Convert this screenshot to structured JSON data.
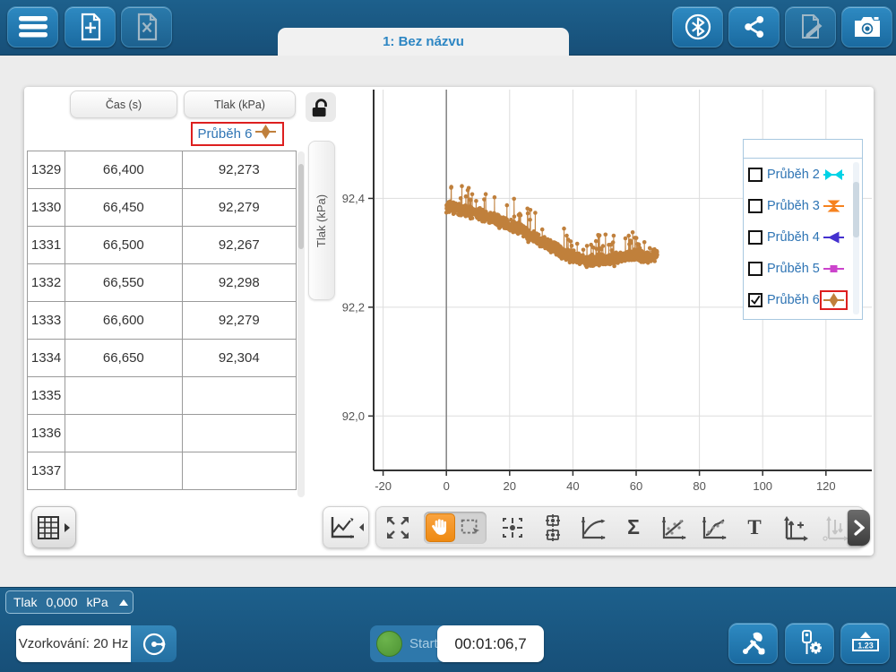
{
  "topbar": {
    "tab_label": "1: Bez názvu"
  },
  "table": {
    "col1": "Čas (s)",
    "col2": "Tlak (kPa)",
    "run_label": "Průběh 6",
    "run_color": "#c0803c",
    "rows": [
      [
        "1329",
        "66,400",
        "92,273"
      ],
      [
        "1330",
        "66,450",
        "92,279"
      ],
      [
        "1331",
        "66,500",
        "92,267"
      ],
      [
        "1332",
        "66,550",
        "92,298"
      ],
      [
        "1333",
        "66,600",
        "92,279"
      ],
      [
        "1334",
        "66,650",
        "92,304"
      ],
      [
        "1335",
        "",
        ""
      ],
      [
        "1336",
        "",
        ""
      ],
      [
        "1337",
        "",
        ""
      ]
    ]
  },
  "graph": {
    "y_axis_button": "Tlak (kPa)",
    "legend_items": [
      {
        "label": "Průběh 2",
        "checked": false,
        "marker": "bowtie-horizontal",
        "color": "#00d3e6",
        "highlight": false
      },
      {
        "label": "Průběh 3",
        "checked": false,
        "marker": "bowtie-vertical",
        "color": "#f6821f",
        "highlight": false
      },
      {
        "label": "Průběh 4",
        "checked": false,
        "marker": "triangle-left",
        "color": "#4431cf",
        "highlight": false
      },
      {
        "label": "Průběh 5",
        "checked": false,
        "marker": "square",
        "color": "#cc44cc",
        "highlight": false
      },
      {
        "label": "Průběh 6",
        "checked": true,
        "marker": "diamond",
        "color": "#c0803c",
        "highlight": true
      }
    ]
  },
  "chart_data": {
    "type": "scatter",
    "title": "",
    "xlabel": "",
    "ylabel": "Tlak (kPa)",
    "series_name": "Průběh 6",
    "color": "#c0803c",
    "grid": true,
    "xlim": [
      -23,
      134.5
    ],
    "ylim": [
      91.9,
      92.6
    ],
    "x_ticks": [
      -20,
      0,
      20,
      40,
      60,
      80,
      100,
      120
    ],
    "x_tick_labels": [
      "-20",
      "0",
      "20",
      "40",
      "60",
      "80",
      "100",
      "120"
    ],
    "y_ticks": [
      92.4,
      92.2,
      92.0
    ],
    "y_tick_labels": [
      "92,4",
      "92,2",
      "92,0"
    ],
    "x_start": 0,
    "x_end": 66.65,
    "step": 0.05,
    "trend": [
      [
        0,
        92.385
      ],
      [
        5,
        92.378
      ],
      [
        10,
        92.372
      ],
      [
        15,
        92.362
      ],
      [
        20,
        92.352
      ],
      [
        25,
        92.338
      ],
      [
        30,
        92.322
      ],
      [
        35,
        92.306
      ],
      [
        40,
        92.293
      ],
      [
        44,
        92.284
      ],
      [
        48,
        92.287
      ],
      [
        52,
        92.289
      ],
      [
        56,
        92.293
      ],
      [
        60,
        92.296
      ],
      [
        63,
        92.291
      ],
      [
        66.65,
        92.298
      ]
    ],
    "noise": 0.012,
    "spike_probability": 0.05,
    "spike_max": 0.04,
    "dip_probability": 0.02,
    "dip_max": 0.012,
    "seed": 7
  },
  "graph_toolbar": {
    "sigma_label": "Σ",
    "text_label": "T"
  },
  "bottombar": {
    "sensor_name": "Tlak",
    "sensor_value": "0,000",
    "sensor_unit": "kPa",
    "sampling_label": "Vzorkování: 20 Hz",
    "start_label": "Start",
    "timer": "00:01:06,7",
    "meter_value": "1.23"
  }
}
